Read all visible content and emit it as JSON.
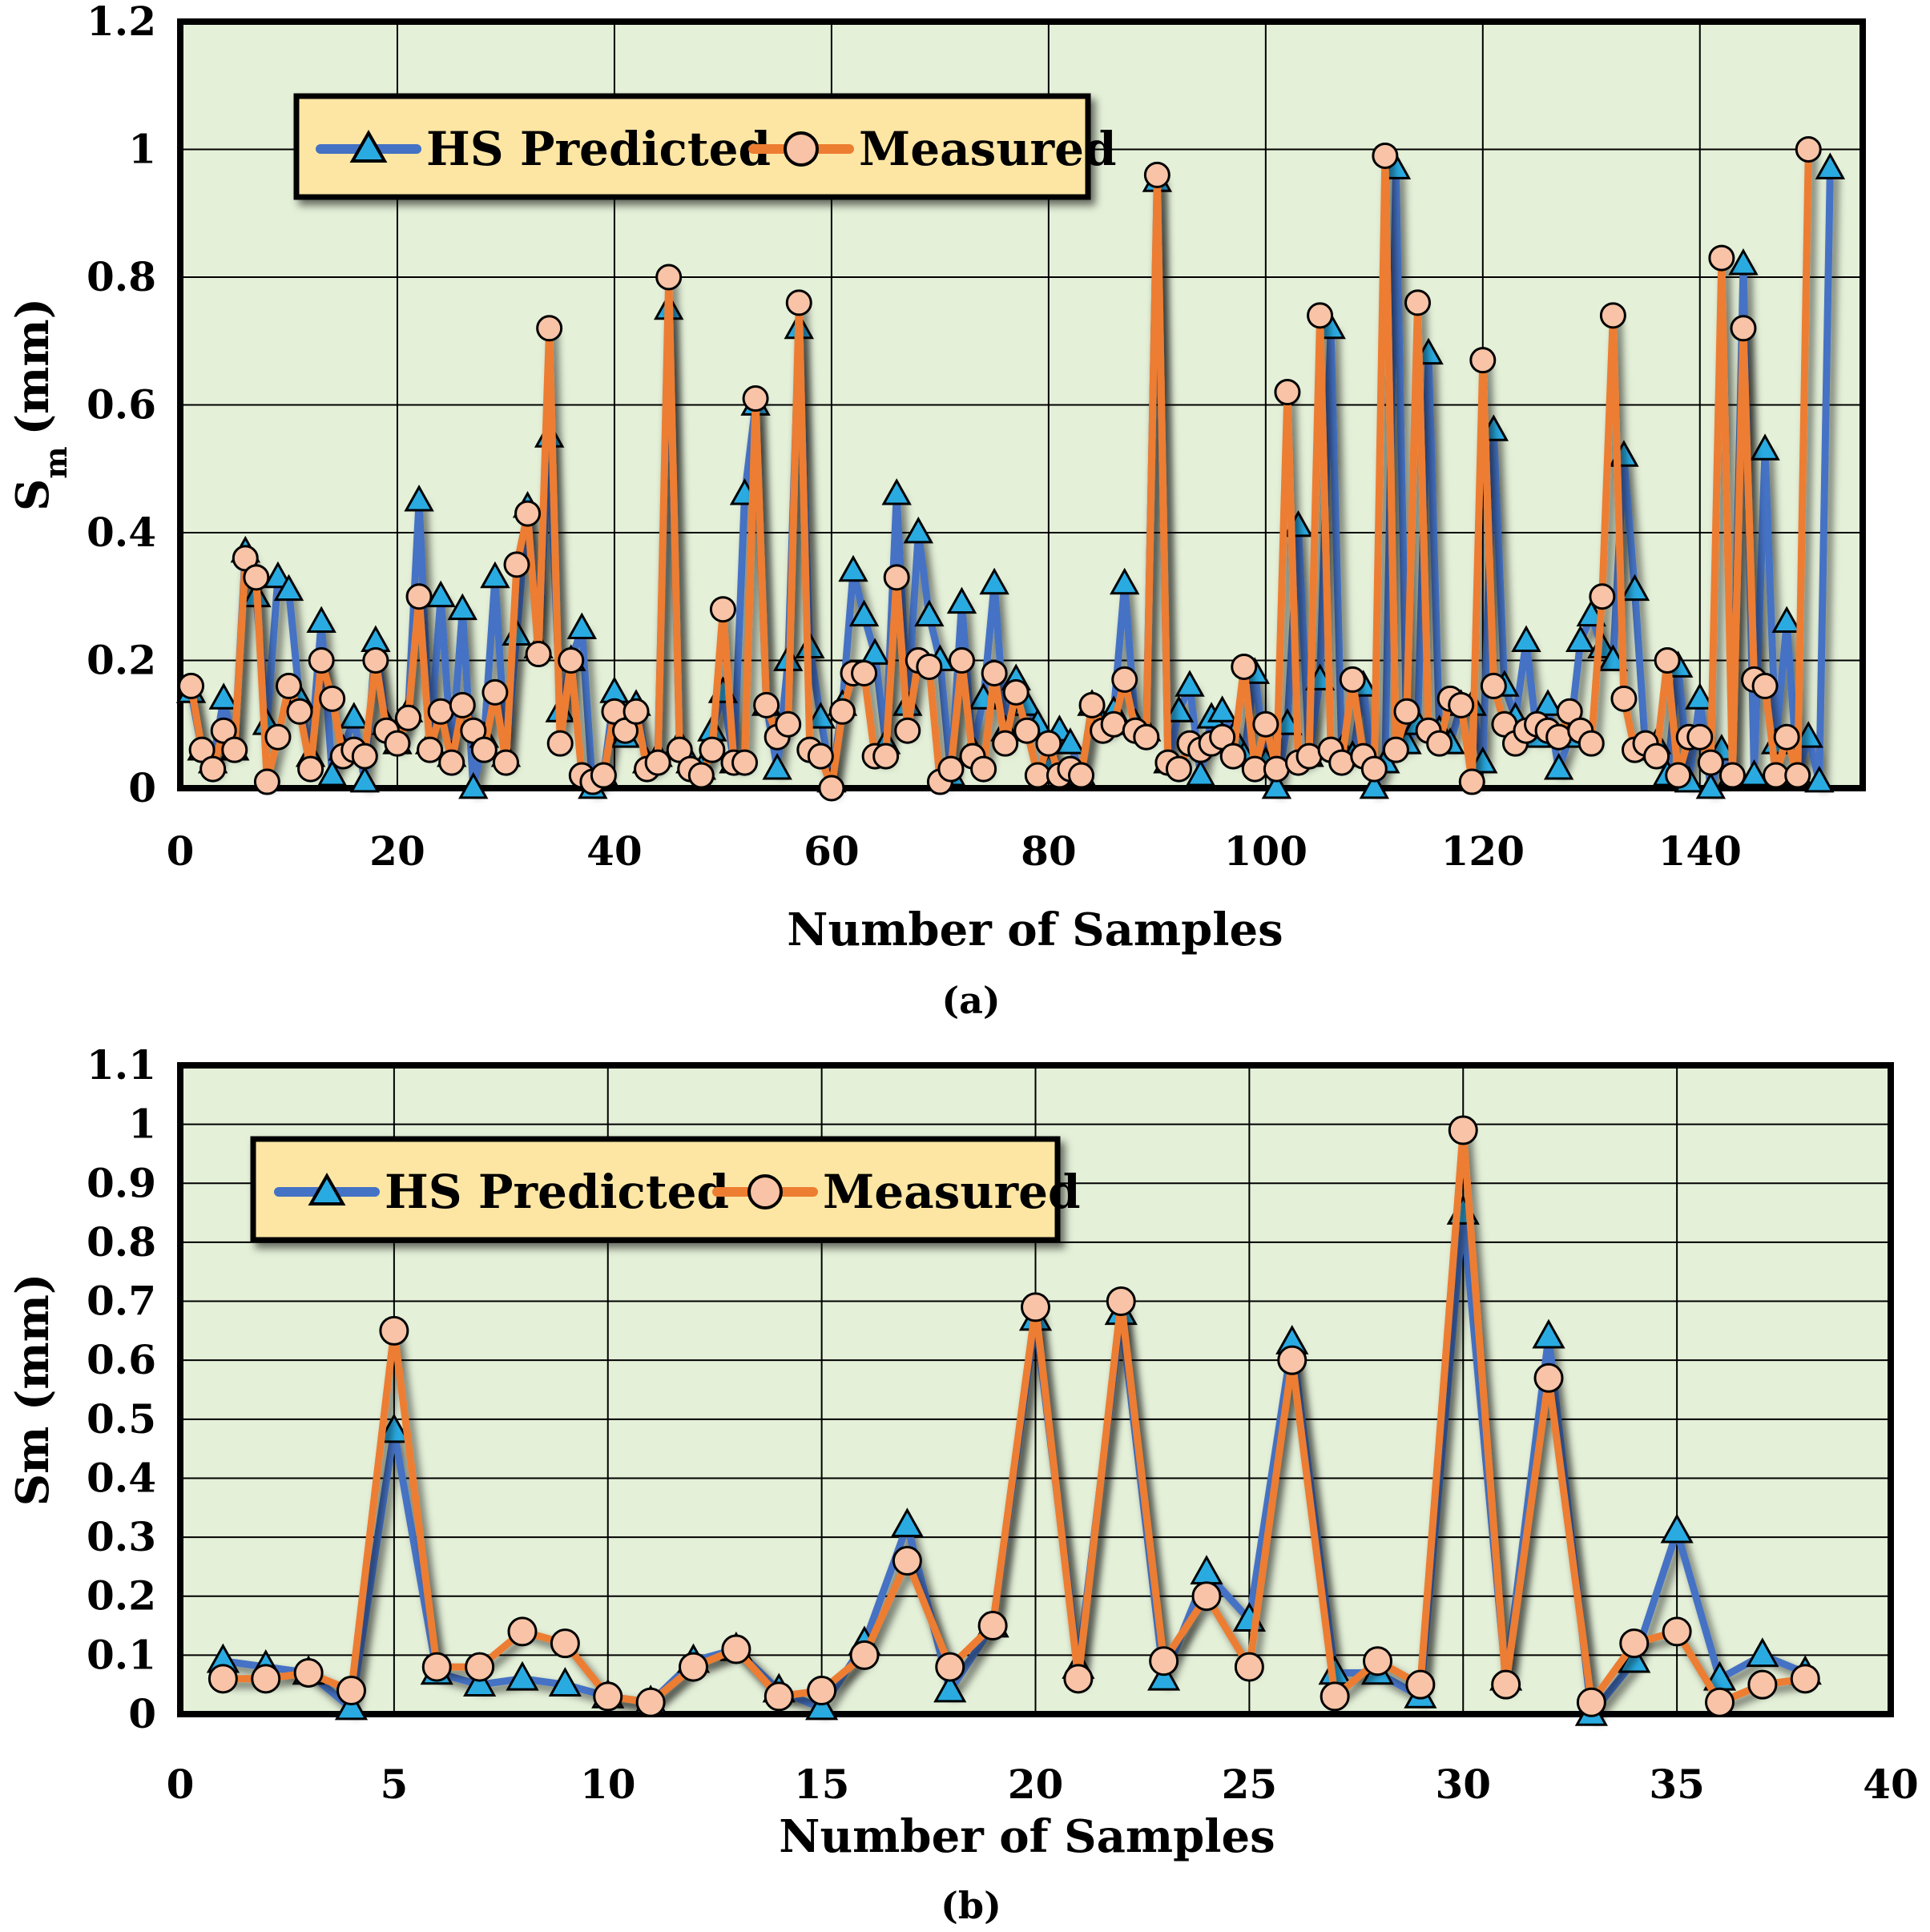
{
  "colors": {
    "plot_bg": "#e4f0d8",
    "predicted_line": "#4472c4",
    "predicted_marker": "#29abe2",
    "measured_line": "#ed7d31",
    "measured_marker": "#f8c3a6",
    "legend_bg": "#fde6a4"
  },
  "chart_data": [
    {
      "type": "line",
      "panel": "(a)",
      "xlabel": "Number of Samples",
      "ylabel_main": "S",
      "ylabel_sub": "m",
      "ylabel_unit": "(mm)",
      "xlim": [
        0,
        155
      ],
      "ylim": [
        0,
        1.2
      ],
      "xticks": [
        0,
        20,
        40,
        60,
        80,
        100,
        120,
        140
      ],
      "yticks": [
        0,
        0.2,
        0.4,
        0.6,
        0.8,
        1,
        1.2
      ],
      "ytick_labels": [
        "0",
        "0.2",
        "0.4",
        "0.6",
        "0.8",
        "1",
        "1.2"
      ],
      "grid": true,
      "legend_position": "top-left",
      "legend": [
        "HS Predicted",
        "Measured"
      ],
      "series": [
        {
          "name": "HS Predicted",
          "values": [
            0.15,
            0.06,
            0.04,
            0.14,
            0.06,
            0.37,
            0.3,
            0.1,
            0.33,
            0.31,
            0.14,
            0.05,
            0.26,
            0.02,
            0.06,
            0.11,
            0.01,
            0.23,
            0.1,
            0.07,
            0.12,
            0.45,
            0.07,
            0.3,
            0.05,
            0.28,
            0.0,
            0.08,
            0.33,
            0.05,
            0.24,
            0.44,
            0.22,
            0.55,
            0.12,
            0.2,
            0.25,
            0.0,
            0.02,
            0.15,
            0.08,
            0.13,
            0.04,
            0.05,
            0.75,
            0.07,
            0.04,
            0.03,
            0.09,
            0.15,
            0.04,
            0.46,
            0.6,
            0.13,
            0.03,
            0.2,
            0.72,
            0.22,
            0.11,
            0.01,
            0.13,
            0.34,
            0.27,
            0.21,
            0.07,
            0.46,
            0.13,
            0.4,
            0.27,
            0.2,
            0.02,
            0.29,
            0.06,
            0.14,
            0.32,
            0.09,
            0.17,
            0.13,
            0.1,
            0.03,
            0.09,
            0.07,
            0.02,
            0.13,
            0.1,
            0.12,
            0.32,
            0.1,
            0.09,
            0.95,
            0.04,
            0.12,
            0.16,
            0.02,
            0.11,
            0.12,
            0.08,
            0.05,
            0.18,
            0.04,
            0.0,
            0.1,
            0.41,
            0.05,
            0.17,
            0.72,
            0.06,
            0.05,
            0.16,
            0.0,
            0.04,
            0.97,
            0.07,
            0.1,
            0.68,
            0.09,
            0.07,
            0.13,
            0.13,
            0.04,
            0.56,
            0.16,
            0.11,
            0.23,
            0.08,
            0.13,
            0.03,
            0.08,
            0.23,
            0.27,
            0.22,
            0.2,
            0.52,
            0.31,
            0.06,
            0.07,
            0.02,
            0.19,
            0.01,
            0.14,
            0.0,
            0.06,
            0.02,
            0.82,
            0.02,
            0.53,
            0.07,
            0.26,
            0.02,
            0.08,
            0.01,
            0.97
          ]
        },
        {
          "name": "Measured",
          "values": [
            0.16,
            0.06,
            0.03,
            0.09,
            0.06,
            0.36,
            0.33,
            0.01,
            0.08,
            0.16,
            0.12,
            0.03,
            0.2,
            0.14,
            0.05,
            0.06,
            0.05,
            0.2,
            0.09,
            0.07,
            0.11,
            0.3,
            0.06,
            0.12,
            0.04,
            0.13,
            0.09,
            0.06,
            0.15,
            0.04,
            0.35,
            0.43,
            0.21,
            0.72,
            0.07,
            0.2,
            0.02,
            0.01,
            0.02,
            0.12,
            0.09,
            0.12,
            0.03,
            0.04,
            0.8,
            0.06,
            0.03,
            0.02,
            0.06,
            0.28,
            0.04,
            0.04,
            0.61,
            0.13,
            0.08,
            0.1,
            0.76,
            0.06,
            0.05,
            0.0,
            0.12,
            0.18,
            0.18,
            0.05,
            0.05,
            0.33,
            0.09,
            0.2,
            0.19,
            0.01,
            0.03,
            0.2,
            0.05,
            0.03,
            0.18,
            0.07,
            0.15,
            0.09,
            0.02,
            0.07,
            0.02,
            0.03,
            0.02,
            0.13,
            0.09,
            0.1,
            0.17,
            0.09,
            0.08,
            0.96,
            0.04,
            0.03,
            0.07,
            0.06,
            0.07,
            0.08,
            0.05,
            0.19,
            0.03,
            0.1,
            0.03,
            0.62,
            0.04,
            0.05,
            0.74,
            0.06,
            0.04,
            0.17,
            0.05,
            0.03,
            0.99,
            0.06,
            0.12,
            0.76,
            0.09,
            0.07,
            0.14,
            0.13,
            0.01,
            0.67,
            0.16,
            0.1,
            0.07,
            0.09,
            0.1,
            0.09,
            0.08,
            0.12,
            0.09,
            0.07,
            0.3,
            0.74,
            0.14,
            0.06,
            0.07,
            0.05,
            0.2,
            0.02,
            0.08,
            0.08,
            0.04,
            0.83,
            0.02,
            0.72,
            0.17,
            0.16,
            0.02,
            0.08,
            0.02,
            1.0
          ]
        }
      ]
    },
    {
      "type": "line",
      "panel": "(b)",
      "xlabel": "Number of Samples",
      "ylabel": "Sm (mm)",
      "xlim": [
        0,
        40
      ],
      "ylim": [
        0,
        1.1
      ],
      "xticks": [
        0,
        5,
        10,
        15,
        20,
        25,
        30,
        35,
        40
      ],
      "yticks": [
        0,
        0.1,
        0.2,
        0.3,
        0.4,
        0.5,
        0.6,
        0.7,
        0.8,
        0.9,
        1,
        1.1
      ],
      "ytick_labels": [
        "0",
        "0.1",
        "0.2",
        "0.3",
        "0.4",
        "0.5",
        "0.6",
        "0.7",
        "0.8",
        "0.9",
        "1",
        "1.1"
      ],
      "grid": true,
      "legend_position": "top-left",
      "legend": [
        "HS Predicted",
        "Measured"
      ],
      "series": [
        {
          "name": "HS Predicted",
          "x": [
            1,
            2,
            3,
            4,
            5,
            6,
            7,
            8,
            9,
            10,
            11,
            12,
            13,
            14,
            15,
            16,
            17,
            18,
            19,
            20,
            21,
            22,
            23,
            24,
            25,
            26,
            27,
            28,
            29,
            30,
            31,
            32,
            33,
            34,
            35,
            36,
            37,
            38
          ],
          "values": [
            0.09,
            0.08,
            0.07,
            0.01,
            0.48,
            0.07,
            0.05,
            0.06,
            0.05,
            0.03,
            0.02,
            0.09,
            0.11,
            0.04,
            0.01,
            0.12,
            0.32,
            0.04,
            0.15,
            0.67,
            0.08,
            0.68,
            0.06,
            0.24,
            0.16,
            0.63,
            0.07,
            0.07,
            0.03,
            0.85,
            0.06,
            0.64,
            0.0,
            0.09,
            0.31,
            0.06,
            0.1,
            0.07
          ]
        },
        {
          "name": "Measured",
          "x": [
            1,
            2,
            3,
            4,
            5,
            6,
            7,
            8,
            9,
            10,
            11,
            12,
            13,
            14,
            15,
            16,
            17,
            18,
            19,
            20,
            21,
            22,
            23,
            24,
            25,
            26,
            27,
            28,
            29,
            30,
            31,
            32,
            33,
            34,
            35,
            36,
            37,
            38
          ],
          "values": [
            0.06,
            0.06,
            0.07,
            0.04,
            0.65,
            0.08,
            0.08,
            0.14,
            0.12,
            0.03,
            0.02,
            0.08,
            0.11,
            0.03,
            0.04,
            0.1,
            0.26,
            0.08,
            0.15,
            0.69,
            0.06,
            0.7,
            0.09,
            0.2,
            0.08,
            0.6,
            0.03,
            0.09,
            0.05,
            0.99,
            0.05,
            0.57,
            0.02,
            0.12,
            0.14,
            0.02,
            0.05,
            0.06
          ]
        }
      ]
    }
  ]
}
